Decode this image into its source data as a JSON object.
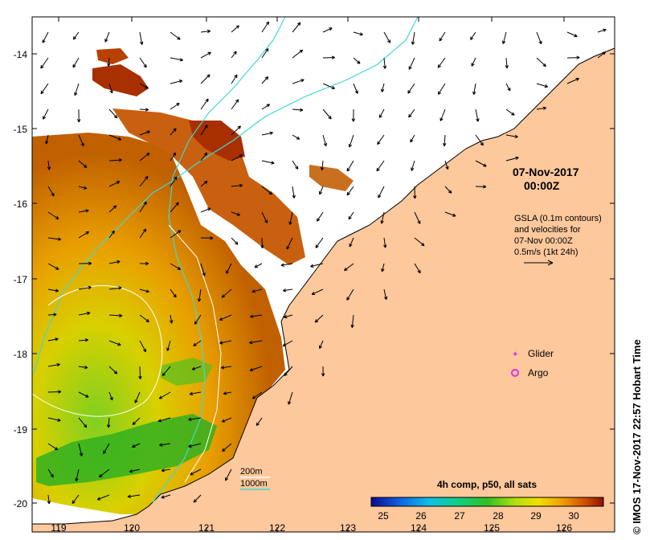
{
  "map": {
    "x_ticks": [
      "119",
      "120",
      "121",
      "122",
      "123",
      "124",
      "125",
      "126"
    ],
    "y_ticks": [
      "-14",
      "-15",
      "-16",
      "-17",
      "-18",
      "-19",
      "-20"
    ],
    "date_line1": "07-Nov-2017",
    "date_line2": "00:00Z",
    "info_lines": [
      "GSLA (0.1m contours)",
      "and velocities for",
      "07-Nov 00:00Z",
      "0.5m/s (1kt 24h)"
    ],
    "legend": {
      "glider_label": "Glider",
      "argo_label": "Argo",
      "glider_color": "#e030e0",
      "argo_color": "#e030e0"
    },
    "isobaths": {
      "label_200": "200m",
      "label_1000": "1000m",
      "color_200": "#ffffff",
      "color_1000": "#40d8d8"
    },
    "colorbar": {
      "title": "4h comp, p50, all sats",
      "ticks": [
        "25",
        "26",
        "27",
        "28",
        "29",
        "30"
      ]
    },
    "credit": "© IMOS 17-Nov-2017 22:57 Hobart Time",
    "colors": {
      "land": "#fcc89c",
      "sst_warm": "#b83c00",
      "sst_mid": "#e8a000",
      "sst_cool": "#20b000"
    }
  }
}
